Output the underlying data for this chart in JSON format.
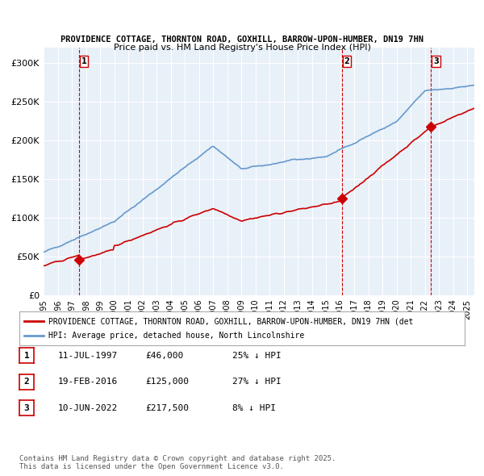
{
  "title1": "PROVIDENCE COTTAGE, THORNTON ROAD, GOXHILL, BARROW-UPON-HUMBER, DN19 7HN",
  "title2": "Price paid vs. HM Land Registry's House Price Index (HPI)",
  "ylabel": "",
  "yticks": [
    0,
    50000,
    100000,
    150000,
    200000,
    250000,
    300000
  ],
  "ytick_labels": [
    "£0",
    "£50K",
    "£100K",
    "£150K",
    "£200K",
    "£250K",
    "£300K"
  ],
  "xlim_start": 1995.0,
  "xlim_end": 2025.5,
  "ylim": [
    0,
    320000
  ],
  "background_color": "#e8f0f8",
  "plot_bg_color": "#e8f0f8",
  "grid_color": "#ffffff",
  "sale_color": "#cc0000",
  "hpi_color": "#6699cc",
  "sale_marker_color": "#cc0000",
  "vline_color": "#cc0000",
  "purchases": [
    {
      "date_num": 1997.52,
      "price": 46000,
      "label": "1"
    },
    {
      "date_num": 2016.13,
      "price": 125000,
      "label": "2"
    },
    {
      "date_num": 2022.44,
      "price": 217500,
      "label": "3"
    }
  ],
  "legend_sale_label": "PROVIDENCE COTTAGE, THORNTON ROAD, GOXHILL, BARROW-UPON-HUMBER, DN19 7HN (det",
  "legend_hpi_label": "HPI: Average price, detached house, North Lincolnshire",
  "table_rows": [
    {
      "num": "1",
      "date": "11-JUL-1997",
      "price": "£46,000",
      "note": "25% ↓ HPI"
    },
    {
      "num": "2",
      "date": "19-FEB-2016",
      "price": "£125,000",
      "note": "27% ↓ HPI"
    },
    {
      "num": "3",
      "date": "10-JUN-2022",
      "price": "£217,500",
      "note": "8% ↓ HPI"
    }
  ],
  "footnote": "Contains HM Land Registry data © Crown copyright and database right 2025.\nThis data is licensed under the Open Government Licence v3.0."
}
